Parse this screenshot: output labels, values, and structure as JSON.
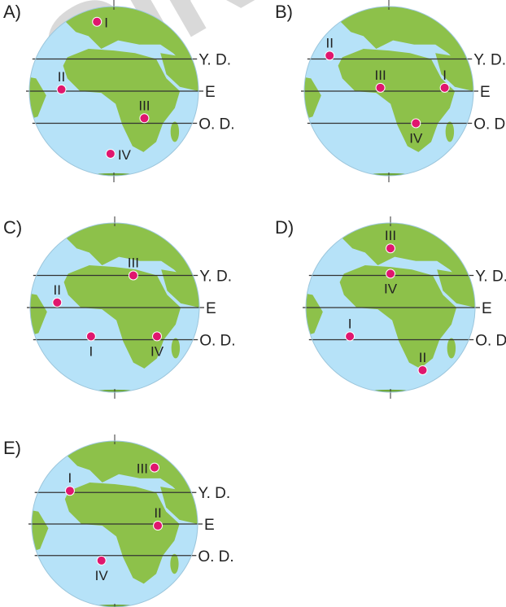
{
  "colors": {
    "ocean": "#b6e2f8",
    "land": "#8dc14a",
    "land_dark": "#6fa83a",
    "marker": "#e0166e",
    "line": "#333333"
  },
  "watermark": "GİRİŞ",
  "line_labels": {
    "north": "Y. D.",
    "equator": "E",
    "south": "O. D."
  },
  "options": [
    {
      "label": "A)",
      "markers": [
        {
          "name": "I",
          "rx": 0.4,
          "ry": 0.09,
          "lab": "right"
        },
        {
          "name": "II",
          "rx": 0.19,
          "ry": 0.49,
          "lab": "above"
        },
        {
          "name": "III",
          "rx": 0.68,
          "ry": 0.66,
          "lab": "above"
        },
        {
          "name": "IV",
          "rx": 0.48,
          "ry": 0.87,
          "lab": "right"
        }
      ]
    },
    {
      "label": "B)",
      "markers": [
        {
          "name": "II",
          "rx": 0.15,
          "ry": 0.29,
          "lab": "above"
        },
        {
          "name": "III",
          "rx": 0.45,
          "ry": 0.48,
          "lab": "above"
        },
        {
          "name": "I",
          "rx": 0.83,
          "ry": 0.48,
          "lab": "above"
        },
        {
          "name": "IV",
          "rx": 0.66,
          "ry": 0.69,
          "lab": "below"
        }
      ]
    },
    {
      "label": "C)",
      "markers": [
        {
          "name": "III",
          "rx": 0.61,
          "ry": 0.31,
          "lab": "above"
        },
        {
          "name": "II",
          "rx": 0.16,
          "ry": 0.47,
          "lab": "above"
        },
        {
          "name": "I",
          "rx": 0.36,
          "ry": 0.67,
          "lab": "below"
        },
        {
          "name": "IV",
          "rx": 0.75,
          "ry": 0.67,
          "lab": "below"
        }
      ]
    },
    {
      "label": "D)",
      "markers": [
        {
          "name": "III",
          "rx": 0.5,
          "ry": 0.15,
          "lab": "above"
        },
        {
          "name": "IV",
          "rx": 0.5,
          "ry": 0.3,
          "lab": "below"
        },
        {
          "name": "I",
          "rx": 0.26,
          "ry": 0.67,
          "lab": "above"
        },
        {
          "name": "II",
          "rx": 0.69,
          "ry": 0.87,
          "lab": "above"
        }
      ]
    },
    {
      "label": "E)",
      "markers": [
        {
          "name": "III",
          "rx": 0.74,
          "ry": 0.16,
          "lab": "left"
        },
        {
          "name": "I",
          "rx": 0.23,
          "ry": 0.3,
          "lab": "above"
        },
        {
          "name": "II",
          "rx": 0.76,
          "ry": 0.51,
          "lab": "above"
        },
        {
          "name": "IV",
          "rx": 0.42,
          "ry": 0.72,
          "lab": "below"
        }
      ]
    }
  ]
}
